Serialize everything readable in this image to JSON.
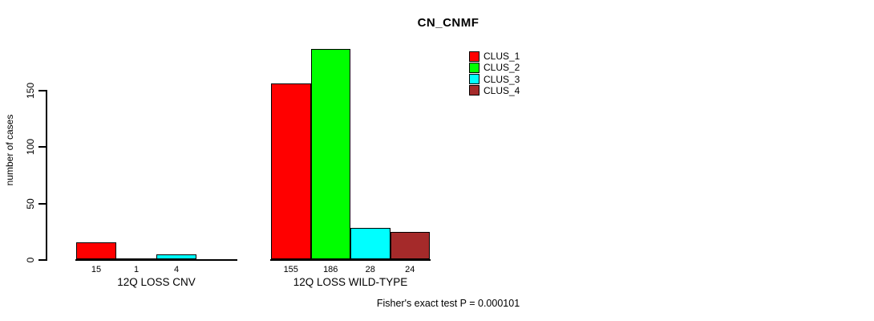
{
  "chart_data": {
    "type": "bar",
    "title": "CN_CNMF",
    "ylabel": "number of cases",
    "xlabel": "",
    "ylim": [
      0,
      150
    ],
    "yticks": [
      0,
      50,
      100,
      150
    ],
    "grid": false,
    "legend_position": "top-right",
    "categories": [
      "12Q LOSS CNV",
      "12Q LOSS WILD-TYPE"
    ],
    "groups": [
      {
        "label": "12Q LOSS CNV",
        "values": [
          15,
          1,
          4,
          0
        ],
        "bar_labels": [
          "15",
          "1",
          "4",
          ""
        ]
      },
      {
        "label": "12Q LOSS WILD-TYPE",
        "values": [
          155,
          186,
          28,
          24
        ],
        "bar_labels": [
          "155",
          "186",
          "28",
          "24"
        ]
      }
    ],
    "series": [
      {
        "name": "CLUS_1",
        "color": "#FF0000"
      },
      {
        "name": "CLUS_2",
        "color": "#00FF00"
      },
      {
        "name": "CLUS_3",
        "color": "#00FFFF"
      },
      {
        "name": "CLUS_4",
        "color": "#A52A2A"
      }
    ],
    "annotation": "Fisher's exact test P = 0.000101",
    "axis_color": "#000000",
    "background_color": "#FFFFFF"
  }
}
